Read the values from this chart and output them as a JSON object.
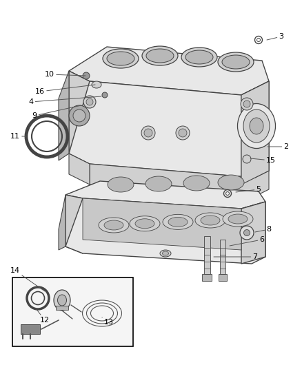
{
  "bg_color": "#ffffff",
  "line_color": "#000000",
  "edge_color": "#444444",
  "fill_light": "#e8e8e8",
  "fill_mid": "#d0d0d0",
  "fill_dark": "#b8b8b8",
  "font_size": 8,
  "label_font_size": 8
}
